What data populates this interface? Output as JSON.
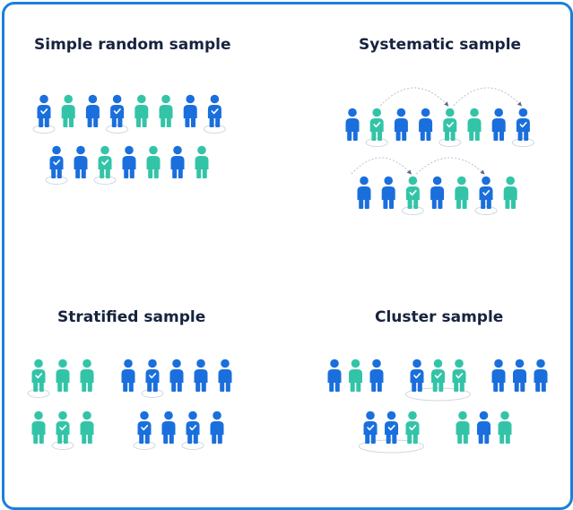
{
  "colors": {
    "border": "#1a80d9",
    "blue": "#1a6fdc",
    "teal": "#33c4a8",
    "title": "#17233f",
    "outline": "#cfd6e0"
  },
  "icons": {
    "person": "person-icon",
    "check": "check-icon"
  },
  "panels": [
    {
      "id": "simple",
      "title": "Simple random sample",
      "rows": [
        [
          {
            "c": "b",
            "s": 1
          },
          {
            "c": "t",
            "s": 0
          },
          {
            "c": "b",
            "s": 0
          },
          {
            "c": "b",
            "s": 1
          },
          {
            "c": "t",
            "s": 0
          },
          {
            "c": "t",
            "s": 0
          },
          {
            "c": "b",
            "s": 0
          },
          {
            "c": "b",
            "s": 1
          }
        ],
        [
          {
            "c": "b",
            "s": 1
          },
          {
            "c": "b",
            "s": 0
          },
          {
            "c": "t",
            "s": 1
          },
          {
            "c": "b",
            "s": 0
          },
          {
            "c": "t",
            "s": 0
          },
          {
            "c": "b",
            "s": 0
          },
          {
            "c": "t",
            "s": 0
          }
        ]
      ]
    },
    {
      "id": "systematic",
      "title": "Systematic sample",
      "rows": [
        [
          {
            "c": "b",
            "s": 0
          },
          {
            "c": "t",
            "s": 1
          },
          {
            "c": "b",
            "s": 0
          },
          {
            "c": "b",
            "s": 0
          },
          {
            "c": "t",
            "s": 1
          },
          {
            "c": "t",
            "s": 0
          },
          {
            "c": "b",
            "s": 0
          },
          {
            "c": "b",
            "s": 1
          }
        ],
        [
          {
            "c": "b",
            "s": 0
          },
          {
            "c": "b",
            "s": 0
          },
          {
            "c": "t",
            "s": 1
          },
          {
            "c": "b",
            "s": 0
          },
          {
            "c": "t",
            "s": 0
          },
          {
            "c": "b",
            "s": 1
          },
          {
            "c": "t",
            "s": 0
          }
        ]
      ]
    },
    {
      "id": "stratified",
      "title": "Stratified sample",
      "groups": [
        [
          {
            "c": "t",
            "s": 1
          },
          {
            "c": "t",
            "s": 0
          },
          {
            "c": "t",
            "s": 0
          }
        ],
        [
          {
            "c": "b",
            "s": 0
          },
          {
            "c": "b",
            "s": 1
          },
          {
            "c": "b",
            "s": 0
          },
          {
            "c": "b",
            "s": 0
          },
          {
            "c": "b",
            "s": 0
          }
        ],
        [
          {
            "c": "t",
            "s": 0
          },
          {
            "c": "t",
            "s": 1
          },
          {
            "c": "t",
            "s": 0
          }
        ],
        [
          {
            "c": "b",
            "s": 1
          },
          {
            "c": "b",
            "s": 0
          },
          {
            "c": "b",
            "s": 1
          },
          {
            "c": "b",
            "s": 0
          }
        ]
      ]
    },
    {
      "id": "cluster",
      "title": "Cluster sample",
      "groups": [
        {
          "sel": 0,
          "people": [
            {
              "c": "b"
            },
            {
              "c": "t"
            },
            {
              "c": "b"
            }
          ]
        },
        {
          "sel": 1,
          "people": [
            {
              "c": "b"
            },
            {
              "c": "t"
            },
            {
              "c": "t"
            }
          ]
        },
        {
          "sel": 0,
          "people": [
            {
              "c": "b"
            },
            {
              "c": "b"
            },
            {
              "c": "b"
            }
          ]
        },
        {
          "sel": 1,
          "people": [
            {
              "c": "b"
            },
            {
              "c": "b"
            },
            {
              "c": "t"
            }
          ]
        },
        {
          "sel": 0,
          "people": [
            {
              "c": "t"
            },
            {
              "c": "b"
            },
            {
              "c": "t"
            }
          ]
        }
      ]
    }
  ]
}
